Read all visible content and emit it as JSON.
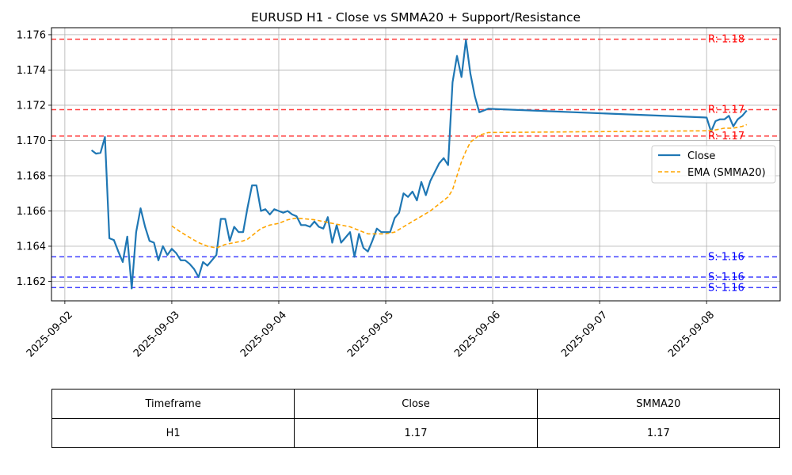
{
  "chart_data": {
    "type": "line",
    "title": "EURUSD H1 - Close vs SMMA20 + Support/Resistance",
    "xlabel": "",
    "ylabel": "",
    "x_ticks": [
      "2025-09-02",
      "2025-09-03",
      "2025-09-04",
      "2025-09-05",
      "2025-09-06",
      "2025-09-07",
      "2025-09-08"
    ],
    "y_ticks": [
      "1.162",
      "1.164",
      "1.166",
      "1.168",
      "1.170",
      "1.172",
      "1.174",
      "1.176"
    ],
    "xlim": [
      "2025-09-01 21:00",
      "2025-09-08 16:30"
    ],
    "ylim": [
      1.1609,
      1.1764
    ],
    "grid": true,
    "legend_position": "center-right",
    "series": [
      {
        "name": "Close",
        "color": "#1f77b4",
        "style": "solid",
        "points": [
          [
            "2025-09-02 06:00",
            1.16945
          ],
          [
            "2025-09-02 07:00",
            1.16925
          ],
          [
            "2025-09-02 08:00",
            1.1693
          ],
          [
            "2025-09-02 09:00",
            1.1702
          ],
          [
            "2025-09-02 10:00",
            1.16445
          ],
          [
            "2025-09-02 11:00",
            1.16435
          ],
          [
            "2025-09-02 12:00",
            1.1637
          ],
          [
            "2025-09-02 13:00",
            1.1631
          ],
          [
            "2025-09-02 14:00",
            1.16455
          ],
          [
            "2025-09-02 15:00",
            1.1616
          ],
          [
            "2025-09-02 16:00",
            1.1648
          ],
          [
            "2025-09-02 17:00",
            1.16615
          ],
          [
            "2025-09-02 18:00",
            1.1651
          ],
          [
            "2025-09-02 19:00",
            1.1643
          ],
          [
            "2025-09-02 20:00",
            1.1642
          ],
          [
            "2025-09-02 21:00",
            1.1632
          ],
          [
            "2025-09-02 22:00",
            1.164
          ],
          [
            "2025-09-02 23:00",
            1.1635
          ],
          [
            "2025-09-03 00:00",
            1.16385
          ],
          [
            "2025-09-03 01:00",
            1.1636
          ],
          [
            "2025-09-03 02:00",
            1.1632
          ],
          [
            "2025-09-03 03:00",
            1.1632
          ],
          [
            "2025-09-03 04:00",
            1.163
          ],
          [
            "2025-09-03 05:00",
            1.1627
          ],
          [
            "2025-09-03 06:00",
            1.16225
          ],
          [
            "2025-09-03 07:00",
            1.1631
          ],
          [
            "2025-09-03 08:00",
            1.1629
          ],
          [
            "2025-09-03 09:00",
            1.1632
          ],
          [
            "2025-09-03 10:00",
            1.1635
          ],
          [
            "2025-09-03 11:00",
            1.16555
          ],
          [
            "2025-09-03 12:00",
            1.16555
          ],
          [
            "2025-09-03 13:00",
            1.1643
          ],
          [
            "2025-09-03 14:00",
            1.1651
          ],
          [
            "2025-09-03 15:00",
            1.1648
          ],
          [
            "2025-09-03 16:00",
            1.1648
          ],
          [
            "2025-09-03 17:00",
            1.1662
          ],
          [
            "2025-09-03 18:00",
            1.16745
          ],
          [
            "2025-09-03 19:00",
            1.16745
          ],
          [
            "2025-09-03 20:00",
            1.166
          ],
          [
            "2025-09-03 21:00",
            1.1661
          ],
          [
            "2025-09-03 22:00",
            1.1658
          ],
          [
            "2025-09-03 23:00",
            1.1661
          ],
          [
            "2025-09-04 00:00",
            1.166
          ],
          [
            "2025-09-04 01:00",
            1.1659
          ],
          [
            "2025-09-04 02:00",
            1.166
          ],
          [
            "2025-09-04 03:00",
            1.1658
          ],
          [
            "2025-09-04 04:00",
            1.1657
          ],
          [
            "2025-09-04 05:00",
            1.1652
          ],
          [
            "2025-09-04 06:00",
            1.1652
          ],
          [
            "2025-09-04 07:00",
            1.1651
          ],
          [
            "2025-09-04 08:00",
            1.1654
          ],
          [
            "2025-09-04 09:00",
            1.1651
          ],
          [
            "2025-09-04 10:00",
            1.165
          ],
          [
            "2025-09-04 11:00",
            1.16565
          ],
          [
            "2025-09-04 12:00",
            1.1642
          ],
          [
            "2025-09-04 13:00",
            1.1652
          ],
          [
            "2025-09-04 14:00",
            1.1642
          ],
          [
            "2025-09-04 15:00",
            1.1645
          ],
          [
            "2025-09-04 16:00",
            1.1648
          ],
          [
            "2025-09-04 17:00",
            1.1634
          ],
          [
            "2025-09-04 18:00",
            1.1647
          ],
          [
            "2025-09-04 19:00",
            1.1639
          ],
          [
            "2025-09-04 20:00",
            1.1637
          ],
          [
            "2025-09-04 21:00",
            1.1643
          ],
          [
            "2025-09-04 22:00",
            1.165
          ],
          [
            "2025-09-04 23:00",
            1.1648
          ],
          [
            "2025-09-05 00:00",
            1.1648
          ],
          [
            "2025-09-05 01:00",
            1.1648
          ],
          [
            "2025-09-05 02:00",
            1.1656
          ],
          [
            "2025-09-05 03:00",
            1.1659
          ],
          [
            "2025-09-05 04:00",
            1.167
          ],
          [
            "2025-09-05 05:00",
            1.1668
          ],
          [
            "2025-09-05 06:00",
            1.1671
          ],
          [
            "2025-09-05 07:00",
            1.1666
          ],
          [
            "2025-09-05 08:00",
            1.16765
          ],
          [
            "2025-09-05 09:00",
            1.1669
          ],
          [
            "2025-09-05 10:00",
            1.1677
          ],
          [
            "2025-09-05 11:00",
            1.1682
          ],
          [
            "2025-09-05 12:00",
            1.1687
          ],
          [
            "2025-09-05 13:00",
            1.169
          ],
          [
            "2025-09-05 14:00",
            1.1686
          ],
          [
            "2025-09-05 15:00",
            1.1733
          ],
          [
            "2025-09-05 16:00",
            1.1748
          ],
          [
            "2025-09-05 17:00",
            1.1736
          ],
          [
            "2025-09-05 18:00",
            1.1757
          ],
          [
            "2025-09-05 19:00",
            1.1738
          ],
          [
            "2025-09-05 20:00",
            1.1725
          ],
          [
            "2025-09-05 21:00",
            1.1716
          ],
          [
            "2025-09-05 23:00",
            1.1718
          ],
          [
            "2025-09-08 00:00",
            1.1713
          ],
          [
            "2025-09-08 01:00",
            1.1705
          ],
          [
            "2025-09-08 02:00",
            1.1711
          ],
          [
            "2025-09-08 03:00",
            1.1712
          ],
          [
            "2025-09-08 04:00",
            1.1712
          ],
          [
            "2025-09-08 05:00",
            1.1714
          ],
          [
            "2025-09-08 06:00",
            1.1708
          ],
          [
            "2025-09-08 07:00",
            1.1712
          ],
          [
            "2025-09-08 08:00",
            1.1714
          ],
          [
            "2025-09-08 09:00",
            1.1717
          ]
        ]
      },
      {
        "name": "EMA (SMMA20)",
        "color": "#ffa500",
        "style": "dashed",
        "points": [
          [
            "2025-09-03 00:00",
            1.16515
          ],
          [
            "2025-09-03 02:00",
            1.1648
          ],
          [
            "2025-09-03 04:00",
            1.1645
          ],
          [
            "2025-09-03 06:00",
            1.1642
          ],
          [
            "2025-09-03 08:00",
            1.164
          ],
          [
            "2025-09-03 10:00",
            1.1639
          ],
          [
            "2025-09-03 12:00",
            1.1641
          ],
          [
            "2025-09-03 14:00",
            1.1642
          ],
          [
            "2025-09-03 16:00",
            1.1643
          ],
          [
            "2025-09-03 17:00",
            1.1644
          ],
          [
            "2025-09-03 19:00",
            1.1648
          ],
          [
            "2025-09-03 20:00",
            1.165
          ],
          [
            "2025-09-03 22:00",
            1.1652
          ],
          [
            "2025-09-04 00:00",
            1.1653
          ],
          [
            "2025-09-04 02:00",
            1.1655
          ],
          [
            "2025-09-04 04:00",
            1.1656
          ],
          [
            "2025-09-04 06:00",
            1.16555
          ],
          [
            "2025-09-04 08:00",
            1.1655
          ],
          [
            "2025-09-04 10:00",
            1.1654
          ],
          [
            "2025-09-04 12:00",
            1.1653
          ],
          [
            "2025-09-04 14:00",
            1.1652
          ],
          [
            "2025-09-04 16:00",
            1.1651
          ],
          [
            "2025-09-04 18:00",
            1.1649
          ],
          [
            "2025-09-04 20:00",
            1.1647
          ],
          [
            "2025-09-04 22:00",
            1.1647
          ],
          [
            "2025-09-05 00:00",
            1.1647
          ],
          [
            "2025-09-05 02:00",
            1.1648
          ],
          [
            "2025-09-05 04:00",
            1.1651
          ],
          [
            "2025-09-05 06:00",
            1.1654
          ],
          [
            "2025-09-05 08:00",
            1.1657
          ],
          [
            "2025-09-05 10:00",
            1.166
          ],
          [
            "2025-09-05 12:00",
            1.1664
          ],
          [
            "2025-09-05 14:00",
            1.1668
          ],
          [
            "2025-09-05 15:00",
            1.1672
          ],
          [
            "2025-09-05 16:00",
            1.168
          ],
          [
            "2025-09-05 17:00",
            1.1688
          ],
          [
            "2025-09-05 18:00",
            1.1694
          ],
          [
            "2025-09-05 19:00",
            1.1699
          ],
          [
            "2025-09-05 20:00",
            1.1701
          ],
          [
            "2025-09-05 21:00",
            1.1703
          ],
          [
            "2025-09-05 23:00",
            1.17045
          ],
          [
            "2025-09-08 00:00",
            1.17055
          ],
          [
            "2025-09-08 02:00",
            1.1706
          ],
          [
            "2025-09-08 04:00",
            1.1707
          ],
          [
            "2025-09-08 06:00",
            1.1707
          ],
          [
            "2025-09-08 08:00",
            1.1708
          ],
          [
            "2025-09-08 09:00",
            1.1709
          ]
        ]
      }
    ],
    "levels": [
      {
        "kind": "resistance",
        "value": 1.17575,
        "label": "R: 1.18",
        "color": "#ff0000"
      },
      {
        "kind": "resistance",
        "value": 1.17175,
        "label": "R: 1.17",
        "color": "#ff0000"
      },
      {
        "kind": "resistance",
        "value": 1.17025,
        "label": "R: 1.17",
        "color": "#ff0000"
      },
      {
        "kind": "support",
        "value": 1.1634,
        "label": "S: 1.16",
        "color": "#0000ff"
      },
      {
        "kind": "support",
        "value": 1.16225,
        "label": "S: 1.16",
        "color": "#0000ff"
      },
      {
        "kind": "support",
        "value": 1.16165,
        "label": "S: 1.16",
        "color": "#0000ff"
      }
    ]
  },
  "table": {
    "headers": [
      "Timeframe",
      "Close",
      "SMMA20"
    ],
    "row": [
      "H1",
      "1.17",
      "1.17"
    ]
  }
}
